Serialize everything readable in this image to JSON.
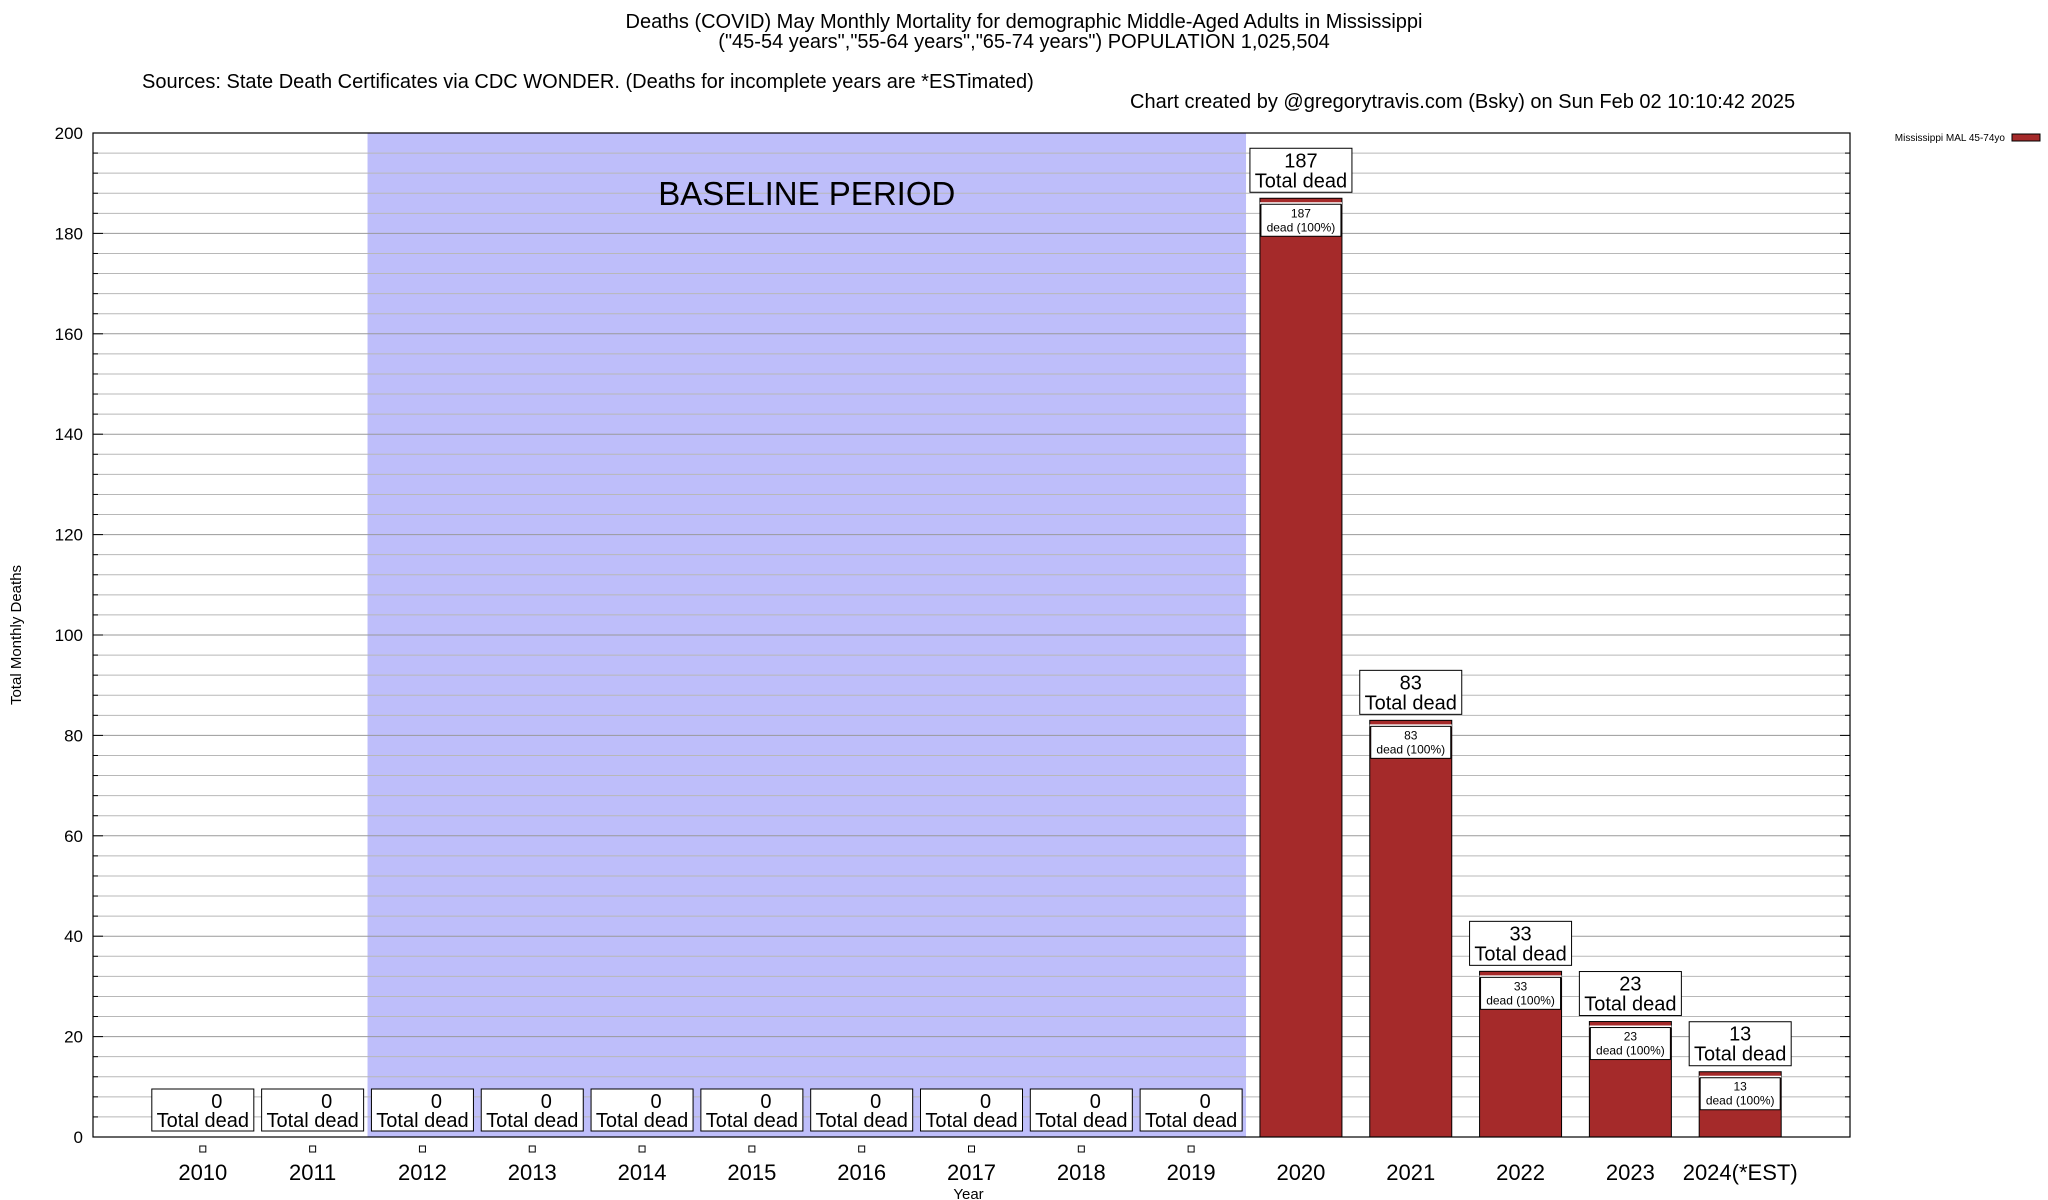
{
  "chart_data": {
    "type": "bar",
    "title": "Deaths (COVID) May Monthly Mortality for demographic Middle-Aged Adults in Mississippi",
    "subtitle": "(\"45-54 years\",\"55-64 years\",\"65-74 years\") POPULATION 1,025,504",
    "sources": "Sources: State Death Certificates via CDC WONDER. (Deaths for incomplete years are *ESTimated)",
    "credit": "Chart created by @gregorytravis.com (Bsky) on Sun Feb 02 10:10:42 2025",
    "xlabel": "Year",
    "ylabel": "Total Monthly Deaths",
    "ylim": [
      0,
      200
    ],
    "yticks": [
      0,
      20,
      40,
      60,
      80,
      100,
      120,
      140,
      160,
      180,
      200
    ],
    "categories": [
      "2010",
      "2011",
      "2012",
      "2013",
      "2014",
      "2015",
      "2016",
      "2017",
      "2018",
      "2019",
      "2020",
      "2021",
      "2022",
      "2023",
      "2024(*EST)"
    ],
    "series": [
      {
        "name": "Mississippi MAL 45-74yo",
        "color": "#a52a2a",
        "values": [
          0,
          0,
          0,
          0,
          0,
          0,
          0,
          0,
          0,
          0,
          187,
          83,
          33,
          23,
          13
        ]
      }
    ],
    "total_label": "Total dead",
    "segment_label": "dead (100%)",
    "baseline": {
      "label": "BASELINE PERIOD",
      "from": "2012",
      "to": "2019",
      "color": "#bebefa"
    },
    "grid": true,
    "legend": "top-right"
  }
}
